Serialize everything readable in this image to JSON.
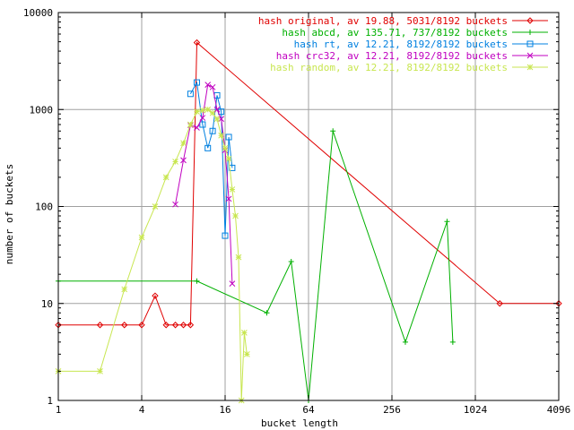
{
  "chart_data": {
    "type": "line",
    "xlabel": "bucket length",
    "ylabel": "number of buckets",
    "x_scale": "log2",
    "y_scale": "log10",
    "xlim": [
      1,
      4096
    ],
    "ylim": [
      1,
      10000
    ],
    "grid": true,
    "legend_position": "top-right",
    "x_ticks": [
      {
        "value": 1,
        "label": "1"
      },
      {
        "value": 4,
        "label": "4"
      },
      {
        "value": 16,
        "label": "16"
      },
      {
        "value": 64,
        "label": "64"
      },
      {
        "value": 256,
        "label": "256"
      },
      {
        "value": 1024,
        "label": "1024"
      },
      {
        "value": 4096,
        "label": "4096"
      }
    ],
    "y_ticks": [
      {
        "value": 1,
        "label": "1"
      },
      {
        "value": 10,
        "label": "10"
      },
      {
        "value": 100,
        "label": "100"
      },
      {
        "value": 1000,
        "label": "1000"
      },
      {
        "value": 10000,
        "label": "10000"
      }
    ],
    "series": [
      {
        "name": "hash original, av 19.88, 5031/8192 buckets",
        "color": "#e00000",
        "marker": "diamond",
        "points": [
          [
            1,
            6
          ],
          [
            2,
            6
          ],
          [
            3,
            6
          ],
          [
            4,
            6
          ],
          [
            5,
            12
          ],
          [
            6,
            6
          ],
          [
            7,
            6
          ],
          [
            8,
            6
          ],
          [
            9,
            6
          ],
          [
            10,
            4900
          ],
          [
            1536,
            10
          ],
          [
            4096,
            10
          ]
        ]
      },
      {
        "name": "hash abcd, av 135.71, 737/8192 buckets",
        "color": "#00b000",
        "marker": "plus",
        "points": [
          [
            1,
            17
          ],
          [
            10,
            17
          ],
          [
            32,
            8
          ],
          [
            48,
            27
          ],
          [
            64,
            1
          ],
          [
            96,
            600
          ],
          [
            320,
            4
          ],
          [
            640,
            70
          ],
          [
            704,
            4
          ]
        ]
      },
      {
        "name": "hash rt, av 12.21, 8192/8192 buckets",
        "color": "#0080e0",
        "marker": "square",
        "points": [
          [
            9,
            1450
          ],
          [
            10,
            1900
          ],
          [
            11,
            700
          ],
          [
            12,
            400
          ],
          [
            13,
            600
          ],
          [
            14,
            1400
          ],
          [
            15,
            950
          ],
          [
            16,
            50
          ],
          [
            17,
            520
          ],
          [
            18,
            250
          ]
        ]
      },
      {
        "name": "hash crc32, av 12.21, 8192/8192 buckets",
        "color": "#c000c0",
        "marker": "x",
        "points": [
          [
            7,
            105
          ],
          [
            8,
            300
          ],
          [
            9,
            690
          ],
          [
            10,
            650
          ],
          [
            11,
            820
          ],
          [
            12,
            1800
          ],
          [
            13,
            1700
          ],
          [
            14,
            1000
          ],
          [
            15,
            800
          ],
          [
            16,
            380
          ],
          [
            17,
            120
          ],
          [
            18,
            16
          ]
        ]
      },
      {
        "name": "hash random, av 12.21, 8192/8192 buckets",
        "color": "#c8e650",
        "marker": "star",
        "points": [
          [
            1,
            2
          ],
          [
            2,
            2
          ],
          [
            3,
            14
          ],
          [
            4,
            48
          ],
          [
            5,
            100
          ],
          [
            6,
            200
          ],
          [
            7,
            290
          ],
          [
            8,
            450
          ],
          [
            9,
            700
          ],
          [
            10,
            950
          ],
          [
            11,
            980
          ],
          [
            12,
            1000
          ],
          [
            13,
            920
          ],
          [
            14,
            800
          ],
          [
            15,
            540
          ],
          [
            16,
            400
          ],
          [
            17,
            310
          ],
          [
            18,
            150
          ],
          [
            19,
            80
          ],
          [
            20,
            30
          ],
          [
            21,
            1
          ],
          [
            22,
            5
          ],
          [
            23,
            3
          ]
        ]
      }
    ]
  }
}
